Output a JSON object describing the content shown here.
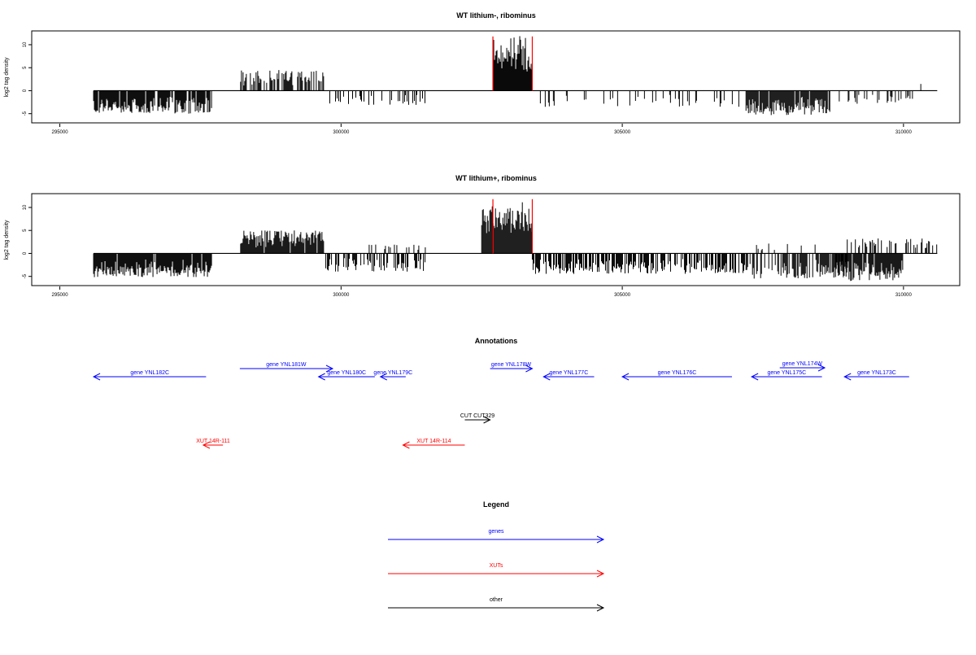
{
  "chart_data": [
    {
      "type": "bar",
      "title": "WT lithium-, ribominus",
      "ylabel": "log2 tag density",
      "xlim": [
        294500,
        311000
      ],
      "ylim": [
        -7,
        13
      ],
      "x_ticks": [
        "295000",
        "300000",
        "305000",
        "310000"
      ],
      "y_ticks": [
        "-5",
        "0",
        "5",
        "10"
      ],
      "data_range": [
        295600,
        310600
      ],
      "marker_lines": {
        "color": "#ff0000",
        "x": [
          302700,
          303400
        ]
      },
      "bars": [
        {
          "from": 295600,
          "to": 297700,
          "sign": -1,
          "max": 5.0,
          "density": 0.9
        },
        {
          "from": 298200,
          "to": 299700,
          "sign": 1,
          "max": 4.5,
          "density": 0.5
        },
        {
          "from": 299800,
          "to": 301500,
          "sign": -1,
          "max": 3.2,
          "density": 0.18
        },
        {
          "from": 302700,
          "to": 303400,
          "sign": 1,
          "max": 12.0,
          "density": 1.0
        },
        {
          "from": 303500,
          "to": 307200,
          "sign": -1,
          "max": 3.6,
          "density": 0.14
        },
        {
          "from": 307200,
          "to": 308700,
          "sign": -1,
          "max": 5.3,
          "density": 0.95
        },
        {
          "from": 308800,
          "to": 310200,
          "sign": -1,
          "max": 3.0,
          "density": 0.2
        },
        {
          "from": 310250,
          "to": 310500,
          "sign": 1,
          "max": 2.0,
          "density": 0.05
        }
      ]
    },
    {
      "type": "bar",
      "title": "WT lithium+, ribominus",
      "ylabel": "log2 tag density",
      "xlim": [
        294500,
        311000
      ],
      "ylim": [
        -7,
        13
      ],
      "x_ticks": [
        "295000",
        "300000",
        "305000",
        "310000"
      ],
      "y_ticks": [
        "-5",
        "0",
        "5",
        "10"
      ],
      "data_range": [
        295600,
        310600
      ],
      "marker_lines": {
        "color": "#ff0000",
        "x": [
          302700,
          303400
        ]
      },
      "bars": [
        {
          "from": 295600,
          "to": 297700,
          "sign": -1,
          "max": 5.2,
          "density": 0.95
        },
        {
          "from": 298200,
          "to": 299700,
          "sign": 1,
          "max": 5.0,
          "density": 0.95
        },
        {
          "from": 299700,
          "to": 301500,
          "sign": -1,
          "max": 4.0,
          "density": 0.4
        },
        {
          "from": 300500,
          "to": 301500,
          "sign": 1,
          "max": 2.0,
          "density": 0.15
        },
        {
          "from": 302500,
          "to": 303400,
          "sign": 1,
          "max": 12.0,
          "density": 1.0
        },
        {
          "from": 303400,
          "to": 307200,
          "sign": -1,
          "max": 4.5,
          "density": 0.6
        },
        {
          "from": 307200,
          "to": 309000,
          "sign": -1,
          "max": 5.5,
          "density": 0.6
        },
        {
          "from": 307300,
          "to": 308500,
          "sign": 1,
          "max": 2.5,
          "density": 0.1
        },
        {
          "from": 308800,
          "to": 310000,
          "sign": -1,
          "max": 6.0,
          "density": 0.95
        },
        {
          "from": 309000,
          "to": 310600,
          "sign": 1,
          "max": 3.3,
          "density": 0.3
        }
      ]
    }
  ],
  "annotations": {
    "title": "Annotations",
    "features": [
      {
        "label": "gene YNL182C",
        "kind": "gene",
        "from": 297600,
        "to": 295600
      },
      {
        "label": "gene YNL181W",
        "kind": "gene",
        "from": 298200,
        "to": 299850
      },
      {
        "label": "gene YNL180C",
        "kind": "gene",
        "from": 300600,
        "to": 299600
      },
      {
        "label": "gene YNL179C",
        "kind": "gene",
        "from": 301150,
        "to": 300700
      },
      {
        "label": "gene YNL178W",
        "kind": "gene",
        "from": 302650,
        "to": 303400
      },
      {
        "label": "gene YNL177C",
        "kind": "gene",
        "from": 304500,
        "to": 303600
      },
      {
        "label": "gene YNL176C",
        "kind": "gene",
        "from": 306950,
        "to": 305000
      },
      {
        "label": "gene YNL175C",
        "kind": "gene",
        "from": 308550,
        "to": 307300
      },
      {
        "label": "gene YNL174W",
        "kind": "gene",
        "from": 307800,
        "to": 308600
      },
      {
        "label": "gene YNL173C",
        "kind": "gene",
        "from": 310100,
        "to": 308950
      },
      {
        "label": "CUT CUT329",
        "kind": "other",
        "from": 302200,
        "to": 302650
      },
      {
        "label": "XUT 14R-111",
        "kind": "XUT",
        "from": 297900,
        "to": 297550
      },
      {
        "label": "XUT 14R-114",
        "kind": "XUT",
        "from": 302200,
        "to": 301100
      }
    ]
  },
  "legend": {
    "title": "Legend",
    "items": [
      {
        "label": "genes",
        "color": "#0000ff"
      },
      {
        "label": "XUTs",
        "color": "#ff0000"
      },
      {
        "label": "other",
        "color": "#000000"
      }
    ]
  },
  "colors": {
    "gene": "#0000ff",
    "XUT": "#ff0000",
    "other": "#000000"
  }
}
